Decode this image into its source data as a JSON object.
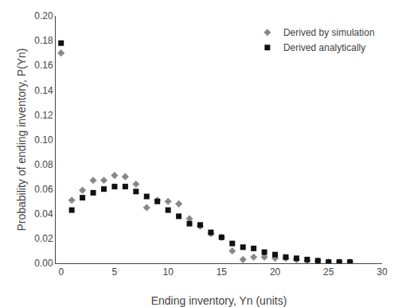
{
  "chart_data": {
    "type": "scatter",
    "xlabel": "Ending inventory, Yn (units)",
    "ylabel": "Probability of ending inventory, P(Yn)",
    "x": [
      0,
      1,
      2,
      3,
      4,
      5,
      6,
      7,
      8,
      9,
      10,
      11,
      12,
      13,
      14,
      15,
      16,
      17,
      18,
      19,
      20,
      21,
      22,
      23,
      24,
      25,
      26,
      27
    ],
    "series": [
      {
        "name": "Derived by simulation",
        "color": "#888888",
        "marker": "diamond",
        "values": [
          0.17,
          0.051,
          0.059,
          0.067,
          0.067,
          0.071,
          0.07,
          0.064,
          0.045,
          0.051,
          0.05,
          0.048,
          0.036,
          0.03,
          0.024,
          0.021,
          0.01,
          0.003,
          0.005,
          0.005,
          0.004,
          0.004,
          0.003,
          0.002,
          0.002,
          0.001,
          0.001,
          0.001
        ]
      },
      {
        "name": "Derived analytically",
        "color": "#111111",
        "marker": "square",
        "values": [
          0.178,
          0.043,
          0.053,
          0.057,
          0.06,
          0.062,
          0.062,
          0.058,
          0.054,
          0.05,
          0.043,
          0.038,
          0.032,
          0.031,
          0.025,
          0.021,
          0.016,
          0.013,
          0.012,
          0.009,
          0.007,
          0.005,
          0.004,
          0.003,
          0.002,
          0.001,
          0.001,
          0.001
        ]
      }
    ],
    "xlim": [
      -0.5,
      30
    ],
    "ylim": [
      0.0,
      0.2
    ],
    "xticks": [
      0,
      5,
      10,
      15,
      20,
      25,
      30
    ],
    "yticks": [
      {
        "value": 0.0,
        "label": "0.00"
      },
      {
        "value": 0.02,
        "label": "0.02"
      },
      {
        "value": 0.04,
        "label": "0.04"
      },
      {
        "value": 0.06,
        "label": "0.06"
      },
      {
        "value": 0.08,
        "label": "0.08"
      },
      {
        "value": 0.1,
        "label": "0.10"
      },
      {
        "value": 0.12,
        "label": "0.12"
      },
      {
        "value": 0.14,
        "label": "0.14"
      },
      {
        "value": 0.16,
        "label": "0.16"
      },
      {
        "value": 0.18,
        "label": "0.18"
      },
      {
        "value": 0.2,
        "label": "0.20"
      }
    ],
    "grid": false,
    "legend": "upper right"
  }
}
